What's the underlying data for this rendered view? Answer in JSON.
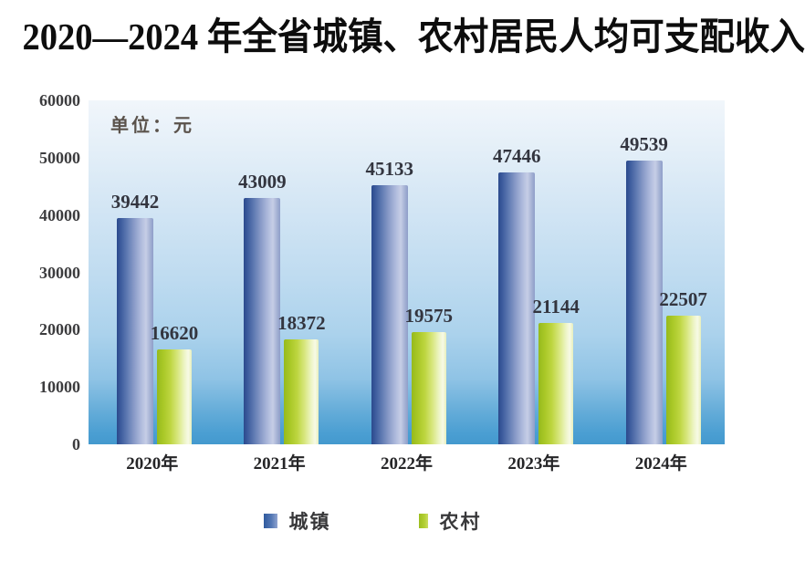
{
  "title": "2020—2024 年全省城镇、农村居民人均可支配收入",
  "chart_data": {
    "type": "bar",
    "title": "2020—2024 年全省城镇、农村居民人均可支配收入",
    "unit_label": "单位：元",
    "categories": [
      "2020年",
      "2021年",
      "2022年",
      "2023年",
      "2024年"
    ],
    "series": [
      {
        "name": "城镇",
        "color": "#3a68a8",
        "values": [
          39442,
          43009,
          45133,
          47446,
          49539
        ]
      },
      {
        "name": "农村",
        "color": "#a8c838",
        "values": [
          16620,
          18372,
          19575,
          21144,
          22507
        ]
      }
    ],
    "xlabel": "",
    "ylabel": "",
    "ylim": [
      0,
      60000
    ],
    "yticks": [
      0,
      10000,
      20000,
      30000,
      40000,
      50000,
      60000
    ],
    "grid": false,
    "legend_position": "bottom",
    "data_labels": true,
    "accent_colors": {
      "urban_bar": "#3a68a8",
      "rural_bar": "#b3cf33",
      "plot_background_top": "#f1f6fb",
      "plot_background_bottom": "#4499ce"
    }
  }
}
